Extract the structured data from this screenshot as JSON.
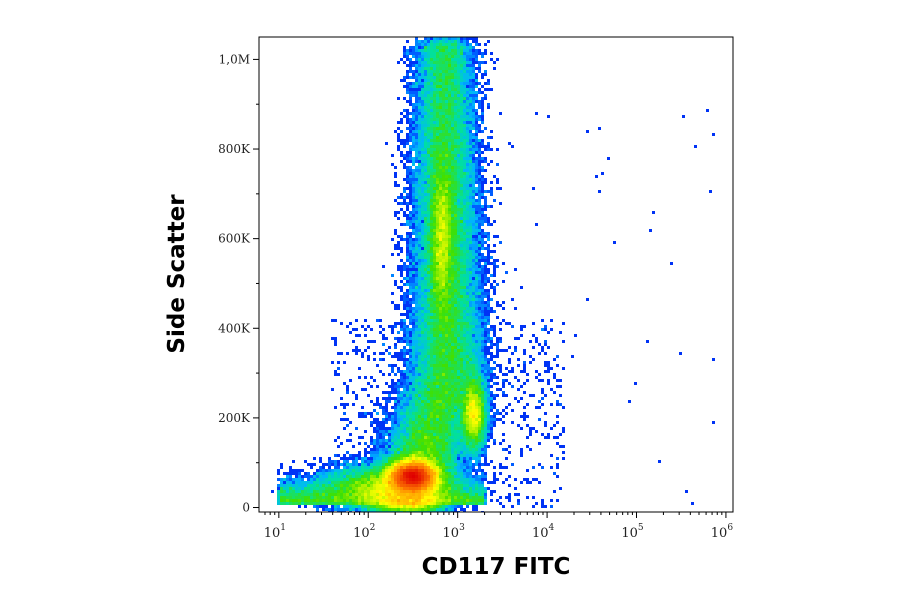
{
  "chart_data": {
    "type": "heatmap",
    "subtype": "flow-cytometry-density-scatter",
    "title": "",
    "xlabel": "CD117 FITC",
    "ylabel": "Side Scatter",
    "x_scale": "log",
    "x_range": [
      6,
      1200000
    ],
    "y_range": [
      -10000,
      1050000
    ],
    "x_ticks": [
      {
        "base": "10",
        "exp": "1",
        "value": 10
      },
      {
        "base": "10",
        "exp": "2",
        "value": 100
      },
      {
        "base": "10",
        "exp": "3",
        "value": 1000
      },
      {
        "base": "10",
        "exp": "4",
        "value": 10000
      },
      {
        "base": "10",
        "exp": "5",
        "value": 100000
      },
      {
        "base": "10",
        "exp": "6",
        "value": 1000000
      }
    ],
    "y_ticks": [
      {
        "label": "0",
        "value": 0
      },
      {
        "label": "200K",
        "value": 200000
      },
      {
        "label": "400K",
        "value": 400000
      },
      {
        "label": "600K",
        "value": 600000
      },
      {
        "label": "800K",
        "value": 800000
      },
      {
        "label": "1,0M",
        "value": 1000000
      }
    ],
    "colormap": [
      "#0000cc",
      "#0040ff",
      "#00b4ff",
      "#00e0a0",
      "#40e000",
      "#ffff00",
      "#ff8000",
      "#e00000"
    ],
    "populations": [
      {
        "x_log10": 2.5,
        "y": 70000,
        "sd_log10": 0.14,
        "sd_y": 18000,
        "weight": 1.0
      },
      {
        "x_log10": 2.2,
        "y": 45000,
        "sd_log10": 0.35,
        "sd_y": 25000,
        "weight": 0.45
      },
      {
        "x_log10": 2.82,
        "y": 600000,
        "sd_log10": 0.07,
        "sd_y": 95000,
        "weight": 0.3
      },
      {
        "x_log10": 3.18,
        "y": 210000,
        "sd_log10": 0.07,
        "sd_y": 40000,
        "weight": 0.25
      }
    ],
    "grid": false,
    "legend": "none"
  }
}
